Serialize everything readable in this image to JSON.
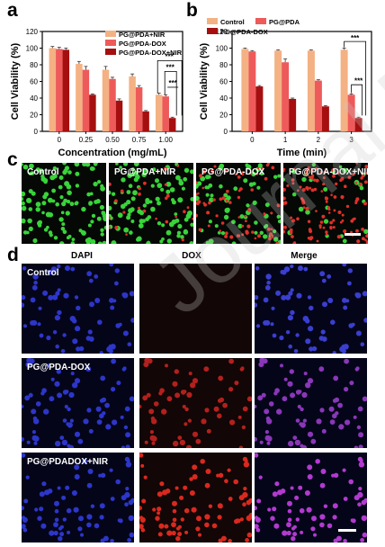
{
  "panels": {
    "a": "a",
    "b": "b",
    "c": "c",
    "d": "d"
  },
  "colors": {
    "light": "#f4b183",
    "mid": "#ee5a5a",
    "dark": "#a50f0f",
    "control": "#f4b183",
    "pgpda": "#ee5a5a",
    "pgpdadox": "#a50f0f"
  },
  "chart_data": [
    {
      "type": "bar",
      "panel": "a",
      "xlabel": "Concentration (mg/mL)",
      "ylabel": "Cell Viability (%)",
      "ylim": [
        0,
        120
      ],
      "yticks": [
        "0",
        "20",
        "40",
        "60",
        "80",
        "100",
        "120"
      ],
      "categories": [
        "0",
        "0.25",
        "0.50",
        "0.75",
        "1.00"
      ],
      "series": [
        {
          "name": "PG@PDA+NIR",
          "values": [
            100,
            81,
            74,
            66,
            44
          ]
        },
        {
          "name": "PG@PDA-DOX",
          "values": [
            99,
            74,
            63,
            53,
            42
          ]
        },
        {
          "name": "PG@PDA-DOX+NIR",
          "values": [
            98,
            44,
            37,
            24,
            16
          ]
        }
      ],
      "errors": [
        [
          2,
          3,
          4,
          3,
          2
        ],
        [
          2,
          4,
          2,
          2,
          2
        ],
        [
          2,
          1,
          2,
          1,
          1
        ]
      ],
      "legend": "top-right",
      "annotations": [
        "***",
        "***",
        "***"
      ]
    },
    {
      "type": "bar",
      "panel": "b",
      "xlabel": "Time (min)",
      "ylabel": "Cell Viability (%)",
      "ylim": [
        0,
        120
      ],
      "yticks": [
        "0",
        "20",
        "40",
        "60",
        "80",
        "100",
        "120"
      ],
      "categories": [
        "0",
        "1",
        "2",
        "3"
      ],
      "series": [
        {
          "name": "Control",
          "values": [
            99,
            97,
            97,
            98
          ]
        },
        {
          "name": "PG@PDA",
          "values": [
            96,
            83,
            61,
            44
          ]
        },
        {
          "name": "PG@PDA-DOX",
          "values": [
            54,
            39,
            30,
            16
          ]
        }
      ],
      "errors": [
        [
          1,
          1,
          1,
          2
        ],
        [
          1,
          4,
          1,
          1
        ],
        [
          1,
          1,
          1,
          1
        ]
      ],
      "legend": "top",
      "annotations": [
        "***",
        "***"
      ]
    }
  ],
  "panel_c": {
    "images": [
      {
        "label": "Control",
        "green": 120,
        "red": 0
      },
      {
        "label": "PG@PDA+NIR",
        "green": 100,
        "red": 25
      },
      {
        "label": "PG@PDA-DOX",
        "green": 65,
        "red": 70
      },
      {
        "label": "PG@PDA-DOX+NIR",
        "green": 25,
        "red": 120
      }
    ]
  },
  "panel_d": {
    "columns": [
      "DAPI",
      "DOX",
      "Merge"
    ],
    "rows": [
      {
        "label": "Control"
      },
      {
        "label": "PG@PDA-DOX"
      },
      {
        "label": "PG@PDADOX+NIR"
      }
    ]
  },
  "watermark": "Journal Pre-proof"
}
